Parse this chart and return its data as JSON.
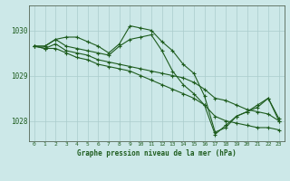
{
  "background_color": "#cce8e8",
  "grid_color": "#aacccc",
  "line_color": "#1e5c1e",
  "marker_color": "#1e5c1e",
  "xlabel": "Graphe pression niveau de la mer (hPa)",
  "xlim": [
    -0.5,
    23.5
  ],
  "ylim": [
    1027.55,
    1030.55
  ],
  "yticks": [
    1028,
    1029,
    1030
  ],
  "xticks": [
    0,
    1,
    2,
    3,
    4,
    5,
    6,
    7,
    8,
    9,
    10,
    11,
    12,
    13,
    14,
    15,
    16,
    17,
    18,
    19,
    20,
    21,
    22,
    23
  ],
  "series": [
    [
      1029.65,
      1029.65,
      1029.8,
      1029.85,
      1029.85,
      1029.75,
      1029.65,
      1029.5,
      1029.7,
      1030.1,
      1030.05,
      1030.0,
      1029.75,
      1029.55,
      1029.25,
      1029.05,
      1028.55,
      1027.75,
      1027.85,
      1028.1,
      1028.2,
      1028.35,
      1028.5,
      1028.0
    ],
    [
      1029.65,
      1029.6,
      1029.7,
      1029.55,
      1029.5,
      1029.45,
      1029.35,
      1029.3,
      1029.25,
      1029.2,
      1029.15,
      1029.1,
      1029.05,
      1029.0,
      1028.95,
      1028.85,
      1028.7,
      1028.5,
      1028.45,
      1028.35,
      1028.25,
      1028.2,
      1028.15,
      1028.0
    ],
    [
      1029.65,
      1029.65,
      1029.8,
      1029.65,
      1029.6,
      1029.55,
      1029.5,
      1029.45,
      1029.65,
      1029.8,
      1029.85,
      1029.9,
      1029.55,
      1029.1,
      1028.8,
      1028.6,
      1028.35,
      1027.7,
      1027.9,
      1028.1,
      1028.2,
      1028.3,
      1028.5,
      1028.05
    ],
    [
      1029.65,
      1029.6,
      1029.6,
      1029.5,
      1029.4,
      1029.35,
      1029.25,
      1029.2,
      1029.15,
      1029.1,
      1029.0,
      1028.9,
      1028.8,
      1028.7,
      1028.6,
      1028.5,
      1028.35,
      1028.1,
      1028.0,
      1027.95,
      1027.9,
      1027.85,
      1027.85,
      1027.8
    ]
  ]
}
